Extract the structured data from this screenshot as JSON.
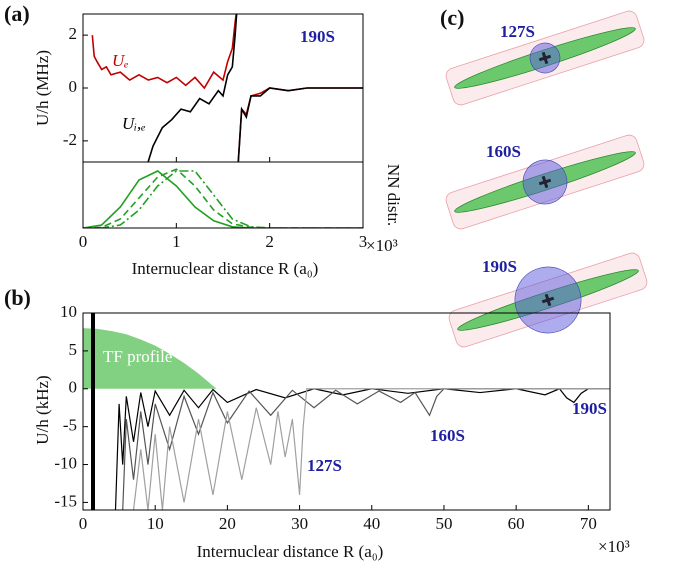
{
  "chart_data": [
    {
      "type": "line",
      "label": "(a)",
      "annotation": "190S",
      "ylabel": "U/h (MHz)",
      "xlim": [
        0,
        3
      ],
      "ylim": [
        -2.8,
        2.8
      ],
      "yticks": [
        -2,
        0,
        2
      ],
      "series": [
        {
          "name": "Uₑ",
          "color": "#c00000",
          "x": [
            0.1,
            0.12,
            0.15,
            0.2,
            0.25,
            0.3,
            0.4,
            0.5,
            0.6,
            0.7,
            0.8,
            0.9,
            1.0,
            1.1,
            1.2,
            1.3,
            1.4,
            1.5,
            1.55,
            1.6,
            1.63,
            1.65,
            1.655,
            1.66,
            1.7,
            1.75,
            1.8,
            1.9,
            2.0,
            2.2,
            2.4,
            2.6,
            2.8,
            3.0
          ],
          "values": [
            2.0,
            1.2,
            1.0,
            0.7,
            0.8,
            0.5,
            0.6,
            0.3,
            0.5,
            0.3,
            0.4,
            0.2,
            0.4,
            0.1,
            0.4,
            0.0,
            0.6,
            0.3,
            1.0,
            1.5,
            2.5,
            3,
            null,
            -3,
            -0.8,
            -1.0,
            -0.3,
            -0.2,
            0.0,
            -0.1,
            0.0,
            0.0,
            0.0,
            0.0
          ]
        },
        {
          "name": "Uᵢ,ₑ",
          "color": "#000000",
          "x": [
            0.68,
            0.75,
            0.85,
            0.95,
            1.05,
            1.15,
            1.25,
            1.35,
            1.45,
            1.5,
            1.55,
            1.6,
            1.63,
            1.65,
            1.655,
            1.66,
            1.7,
            1.75,
            1.8,
            1.9,
            2.0,
            2.2,
            2.4,
            2.6,
            2.8,
            3.0
          ],
          "values": [
            -3,
            -2.2,
            -1.5,
            -1.2,
            -0.8,
            -0.9,
            -0.4,
            -0.6,
            -0.1,
            -0.3,
            0.5,
            0.8,
            2,
            3,
            null,
            -3,
            -0.8,
            -1.1,
            -0.3,
            -0.3,
            0.0,
            -0.1,
            0,
            0,
            0,
            0
          ]
        }
      ]
    },
    {
      "type": "line",
      "ylabel": "NN distr.",
      "xlabel": "Internuclear distance R (a₀)",
      "x_multiplier": "×10³",
      "xlim": [
        0,
        3
      ],
      "ylim": [
        0,
        1.1
      ],
      "xticks": [
        0,
        1,
        2,
        3
      ],
      "series": [
        {
          "color": "#22a022",
          "style": "solid",
          "x": [
            0,
            0.2,
            0.4,
            0.6,
            0.8,
            1.0,
            1.2,
            1.4,
            1.6,
            1.8,
            2.0,
            3.0
          ],
          "values": [
            0,
            0.05,
            0.35,
            0.8,
            0.95,
            0.7,
            0.35,
            0.12,
            0.02,
            0,
            0,
            0
          ]
        },
        {
          "color": "#22a022",
          "style": "dashed",
          "x": [
            0,
            0.2,
            0.4,
            0.6,
            0.8,
            1.0,
            1.2,
            1.4,
            1.6,
            1.8,
            2.0,
            3.0
          ],
          "values": [
            0,
            0.01,
            0.15,
            0.5,
            0.85,
            0.98,
            0.7,
            0.3,
            0.07,
            0.01,
            0,
            0
          ]
        },
        {
          "color": "#22a022",
          "style": "dashdot",
          "x": [
            0,
            0.2,
            0.4,
            0.6,
            0.8,
            1.0,
            1.2,
            1.4,
            1.6,
            1.8,
            2.0,
            3.0
          ],
          "values": [
            0,
            0,
            0.05,
            0.3,
            0.7,
            0.95,
            0.95,
            0.55,
            0.15,
            0.02,
            0,
            0
          ]
        }
      ]
    },
    {
      "type": "line",
      "label": "(b)",
      "ylabel": "U/h (kHz)",
      "xlabel": "Internuclear distance R (a₀)",
      "x_multiplier": "×10³",
      "xlim": [
        0,
        73
      ],
      "ylim": [
        -16,
        10
      ],
      "xticks": [
        0,
        10,
        20,
        30,
        40,
        50,
        60,
        70
      ],
      "yticks": [
        10,
        5,
        0,
        -5,
        -10,
        -15
      ],
      "area": {
        "label": "TF profile",
        "color": "#6cc86c",
        "x": [
          0,
          2,
          4,
          6,
          8,
          10,
          12,
          14,
          16,
          18,
          18.5
        ],
        "values": [
          8,
          7.9,
          7.6,
          7.2,
          6.5,
          5.7,
          4.6,
          3.4,
          2.0,
          0.4,
          0
        ]
      },
      "series": [
        {
          "name": "190S",
          "color": "#000000",
          "x": [
            4.5,
            5,
            5.5,
            6,
            7,
            8,
            9,
            10,
            12,
            14,
            16,
            18,
            20,
            24,
            28,
            32,
            36,
            40,
            45,
            50,
            55,
            60,
            64,
            66,
            67,
            68,
            69,
            70,
            73
          ],
          "values": [
            -16,
            -2,
            -10,
            -1,
            -7,
            -0.5,
            -5,
            -0.3,
            -3.5,
            -0.2,
            -2.5,
            -0.1,
            -1.8,
            -0.1,
            -1.2,
            0,
            -0.8,
            0,
            -0.6,
            0,
            -0.5,
            0,
            -0.8,
            0,
            -1.2,
            -1.8,
            -0.6,
            0,
            0
          ]
        },
        {
          "name": "160S",
          "color": "#555555",
          "x": [
            5.5,
            6,
            7,
            8,
            9,
            10,
            12,
            14,
            16,
            18,
            20,
            23,
            26,
            29,
            32,
            35,
            38,
            41,
            44,
            46,
            47,
            48,
            49,
            50,
            73
          ],
          "values": [
            -16,
            -4,
            -12,
            -3,
            -10,
            -2,
            -8,
            -1,
            -6,
            -0.5,
            -4.5,
            -0.3,
            -3.5,
            -0.2,
            -2.5,
            -0.2,
            -2,
            -0.3,
            -1.8,
            -0.5,
            -2,
            -3.5,
            -1,
            0,
            0
          ]
        },
        {
          "name": "127S",
          "color": "#a0a0a0",
          "x": [
            7,
            8,
            9,
            10,
            11,
            12,
            14,
            16,
            18,
            20,
            22,
            24,
            26,
            27,
            28,
            29,
            29.5,
            30,
            30.5,
            31,
            73
          ],
          "values": [
            -16,
            -8,
            -16,
            -6,
            -16,
            -5,
            -15,
            -4,
            -14,
            -3,
            -12,
            -2.5,
            -10,
            -3,
            -9,
            -4,
            -9,
            -14,
            -5,
            0,
            0
          ]
        }
      ]
    }
  ],
  "panel_c": {
    "label": "(c)",
    "states": [
      "127S",
      "160S",
      "190S"
    ]
  }
}
